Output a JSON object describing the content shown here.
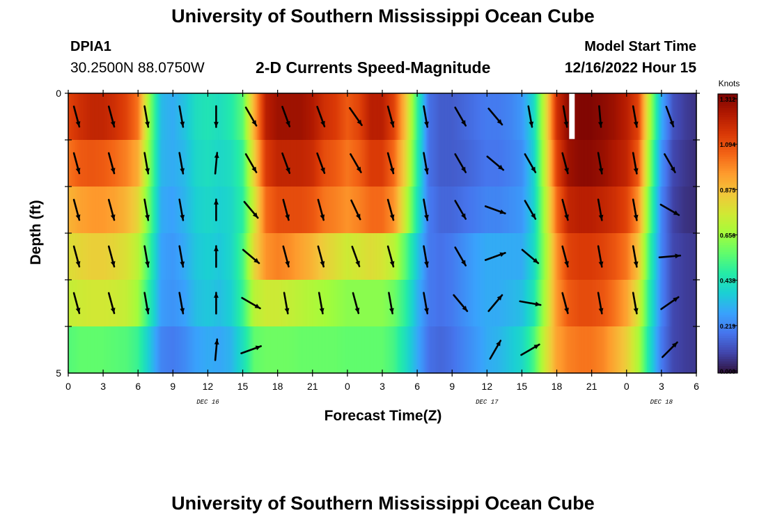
{
  "header": {
    "title": "University of Southern Mississippi Ocean Cube",
    "station": "DPIA1",
    "coords": "30.2500N  88.0750W",
    "model_start_label": "Model Start Time",
    "model_start_value": "12/16/2022 Hour 15"
  },
  "footer": {
    "title": "University of Southern Mississippi Ocean Cube"
  },
  "chart_data": {
    "type": "heatmap",
    "title": "2-D Currents Speed-Magnitude",
    "xlabel": "Forecast Time(Z)",
    "ylabel": "Depth (ft)",
    "x_tick_labels": [
      "0",
      "3",
      "6",
      "9",
      "12",
      "15",
      "18",
      "21",
      "0",
      "3",
      "6",
      "9",
      "12",
      "15",
      "18",
      "21",
      "0",
      "3",
      "6"
    ],
    "date_labels": [
      {
        "text": "DEC 16",
        "at_hour": 12
      },
      {
        "text": "DEC 17",
        "at_hour": 36
      },
      {
        "text": "DEC 18",
        "at_hour": 51
      }
    ],
    "x_range_hours": [
      0,
      54
    ],
    "y_tick_labels": [
      "0",
      "5"
    ],
    "ylim": [
      0,
      5
    ],
    "colorbar": {
      "unit": "Knots",
      "range": [
        0,
        1.312
      ],
      "tick_labels": [
        "1.312",
        "1.094",
        "0.875",
        "0.656",
        "0.438",
        "0.219",
        "0.000"
      ],
      "colors": [
        "#30123b",
        "#4145ab",
        "#4675ed",
        "#39a2fc",
        "#1bcfd4",
        "#24eca6",
        "#61fc6c",
        "#a4fc3b",
        "#d1e834",
        "#f3c63a",
        "#fe9b2d",
        "#f36315",
        "#d93806",
        "#b11901",
        "#7a0402"
      ]
    },
    "depth_levels": 6,
    "time_columns_hours": [
      0,
      1,
      2,
      3,
      4,
      5,
      6,
      7,
      8,
      9,
      10,
      11,
      12,
      13,
      14,
      15,
      16,
      17,
      18,
      19,
      20,
      21,
      22,
      23,
      24,
      25,
      26,
      27,
      28,
      29,
      30,
      31,
      32,
      33,
      34,
      35,
      36,
      37,
      38,
      39,
      40,
      41,
      42,
      43,
      44,
      45,
      46,
      47,
      48,
      49,
      50,
      51,
      52,
      53,
      54
    ],
    "speed_knots": [
      [
        1.1,
        1.15,
        1.18,
        1.18,
        1.15,
        1.1,
        1.0,
        0.62,
        0.33,
        0.3,
        0.35,
        0.42,
        0.44,
        0.42,
        0.46,
        0.55,
        0.9,
        1.2,
        1.25,
        1.25,
        1.25,
        1.22,
        1.15,
        1.12,
        1.05,
        1.1,
        1.2,
        1.2,
        1.1,
        0.85,
        0.5,
        0.18,
        0.14,
        0.14,
        0.16,
        0.18,
        0.2,
        0.2,
        0.22,
        0.26,
        0.4,
        0.75,
        1.15,
        1.28,
        1.3,
        1.3,
        1.28,
        1.25,
        1.2,
        1.1,
        0.68,
        0.3,
        0.12,
        0.08,
        0.06
      ],
      [
        1.0,
        1.05,
        1.06,
        1.05,
        1.02,
        0.98,
        0.9,
        0.6,
        0.32,
        0.3,
        0.33,
        0.4,
        0.42,
        0.4,
        0.42,
        0.5,
        0.82,
        1.12,
        1.18,
        1.18,
        1.18,
        1.16,
        1.08,
        1.05,
        1.0,
        1.04,
        1.12,
        1.12,
        1.02,
        0.8,
        0.48,
        0.18,
        0.14,
        0.14,
        0.15,
        0.17,
        0.19,
        0.19,
        0.21,
        0.24,
        0.38,
        0.72,
        1.1,
        1.25,
        1.28,
        1.28,
        1.26,
        1.22,
        1.18,
        1.05,
        0.62,
        0.25,
        0.1,
        0.07,
        0.05
      ],
      [
        0.88,
        0.92,
        0.94,
        0.94,
        0.92,
        0.88,
        0.8,
        0.56,
        0.3,
        0.28,
        0.32,
        0.38,
        0.4,
        0.38,
        0.4,
        0.48,
        0.75,
        1.02,
        1.08,
        1.08,
        1.08,
        1.06,
        1.0,
        0.98,
        0.95,
        0.98,
        1.02,
        1.02,
        0.95,
        0.72,
        0.44,
        0.2,
        0.16,
        0.16,
        0.18,
        0.2,
        0.22,
        0.22,
        0.24,
        0.26,
        0.38,
        0.68,
        1.02,
        1.18,
        1.2,
        1.2,
        1.18,
        1.15,
        1.1,
        0.95,
        0.56,
        0.22,
        0.09,
        0.06,
        0.05
      ],
      [
        0.78,
        0.8,
        0.82,
        0.82,
        0.8,
        0.77,
        0.7,
        0.5,
        0.28,
        0.26,
        0.3,
        0.36,
        0.38,
        0.36,
        0.4,
        0.52,
        0.8,
        0.95,
        0.98,
        0.96,
        0.92,
        0.88,
        0.82,
        0.78,
        0.74,
        0.76,
        0.78,
        0.76,
        0.7,
        0.55,
        0.36,
        0.2,
        0.18,
        0.2,
        0.24,
        0.28,
        0.3,
        0.3,
        0.3,
        0.3,
        0.4,
        0.65,
        0.95,
        1.1,
        1.12,
        1.12,
        1.1,
        1.06,
        1.0,
        0.85,
        0.5,
        0.22,
        0.1,
        0.08,
        0.07
      ],
      [
        0.72,
        0.74,
        0.75,
        0.75,
        0.74,
        0.72,
        0.65,
        0.46,
        0.27,
        0.25,
        0.28,
        0.34,
        0.36,
        0.34,
        0.38,
        0.5,
        0.7,
        0.74,
        0.74,
        0.72,
        0.7,
        0.68,
        0.66,
        0.64,
        0.62,
        0.62,
        0.62,
        0.62,
        0.58,
        0.48,
        0.32,
        0.2,
        0.18,
        0.2,
        0.24,
        0.28,
        0.3,
        0.3,
        0.32,
        0.34,
        0.44,
        0.68,
        0.94,
        1.05,
        1.08,
        1.08,
        1.06,
        1.0,
        0.92,
        0.76,
        0.46,
        0.22,
        0.1,
        0.08,
        0.07
      ],
      [
        0.54,
        0.56,
        0.56,
        0.56,
        0.55,
        0.54,
        0.5,
        0.36,
        0.22,
        0.2,
        0.23,
        0.28,
        0.3,
        0.29,
        0.32,
        0.42,
        0.56,
        0.58,
        0.58,
        0.58,
        0.57,
        0.57,
        0.57,
        0.57,
        0.56,
        0.56,
        0.56,
        0.56,
        0.52,
        0.42,
        0.3,
        0.18,
        0.16,
        0.18,
        0.22,
        0.26,
        0.3,
        0.32,
        0.36,
        0.4,
        0.52,
        0.74,
        0.92,
        0.98,
        1.0,
        1.0,
        0.97,
        0.9,
        0.82,
        0.68,
        0.42,
        0.2,
        0.1,
        0.08,
        0.07
      ]
    ],
    "arrow_hours": [
      0,
      3,
      6,
      9,
      12,
      15,
      18,
      21,
      24,
      27,
      30,
      33,
      36,
      39,
      42,
      45,
      48,
      51
    ],
    "arrow_direction_deg": [
      [
        165,
        165,
        170,
        170,
        180,
        150,
        160,
        160,
        145,
        165,
        170,
        150,
        140,
        170,
        170,
        175,
        170,
        160
      ],
      [
        165,
        165,
        170,
        170,
        5,
        150,
        160,
        160,
        150,
        165,
        170,
        150,
        130,
        150,
        165,
        170,
        170,
        150
      ],
      [
        165,
        165,
        170,
        170,
        0,
        140,
        165,
        165,
        155,
        165,
        170,
        150,
        110,
        150,
        165,
        170,
        170,
        120
      ],
      [
        165,
        165,
        170,
        170,
        0,
        130,
        165,
        165,
        160,
        165,
        170,
        150,
        70,
        130,
        165,
        170,
        170,
        85
      ],
      [
        165,
        165,
        170,
        170,
        0,
        120,
        170,
        170,
        165,
        170,
        170,
        140,
        40,
        100,
        165,
        170,
        170,
        55
      ],
      [
        0,
        0,
        0,
        0,
        5,
        70,
        0,
        0,
        0,
        0,
        0,
        0,
        30,
        60,
        0,
        0,
        0,
        45
      ]
    ],
    "arrow_length_frac": [
      [
        1,
        1,
        1,
        1,
        1,
        1,
        1,
        1,
        1,
        1,
        1,
        1,
        1,
        1,
        1,
        1,
        1,
        1
      ],
      [
        1,
        1,
        1,
        1,
        1,
        1,
        1,
        1,
        1,
        1,
        1,
        1,
        1,
        1,
        1,
        1,
        1,
        1
      ],
      [
        1,
        1,
        1,
        1,
        1,
        1,
        1,
        1,
        1,
        1,
        1,
        1,
        1,
        1,
        1,
        1,
        1,
        1
      ],
      [
        1,
        1,
        1,
        1,
        1,
        1,
        1,
        1,
        1,
        1,
        1,
        1,
        1,
        1,
        1,
        1,
        1,
        1
      ],
      [
        1,
        1,
        1,
        1,
        1,
        1,
        1,
        1,
        1,
        1,
        1,
        1,
        1,
        1,
        1,
        1,
        1,
        1
      ],
      [
        0,
        0,
        0,
        0,
        1,
        1,
        0,
        0,
        0,
        0,
        0,
        0,
        1,
        1,
        0,
        0,
        0,
        1
      ]
    ],
    "missing_marks": [
      {
        "hour": 43.3,
        "level": 0
      }
    ]
  }
}
